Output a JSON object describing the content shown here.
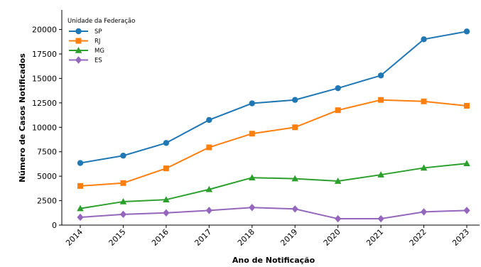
{
  "chart_data": {
    "type": "line",
    "xlabel": "Ano de Notificação",
    "ylabel": "Número de Casos Notificados",
    "x": [
      "2014",
      "2015",
      "2016",
      "2017",
      "2018",
      "2019",
      "2020",
      "2021",
      "2022",
      "2023"
    ],
    "ylim": [
      0,
      22000
    ],
    "yticks": [
      0,
      2500,
      5000,
      7500,
      10000,
      12500,
      15000,
      17500,
      20000
    ],
    "ytick_labels": [
      "0",
      "2500",
      "5000",
      "7500",
      "10000",
      "12500",
      "15000",
      "17500",
      "20000"
    ],
    "grid": false,
    "legend": {
      "title": "Unidade da Federação",
      "position": "top-left"
    },
    "series": [
      {
        "name": "SP",
        "color": "#1f77b4",
        "marker": "circle",
        "values": [
          6350,
          7100,
          8400,
          10750,
          12450,
          12800,
          14000,
          15300,
          19000,
          19800
        ]
      },
      {
        "name": "RJ",
        "color": "#ff7f0e",
        "marker": "square",
        "values": [
          4000,
          4300,
          5800,
          7950,
          9350,
          10000,
          11750,
          12800,
          12650,
          12200
        ]
      },
      {
        "name": "MG",
        "color": "#2ca02c",
        "marker": "triangle",
        "values": [
          1700,
          2400,
          2600,
          3650,
          4850,
          4750,
          4500,
          5150,
          5850,
          6300
        ]
      },
      {
        "name": "ES",
        "color": "#9467bd",
        "marker": "diamond",
        "values": [
          800,
          1100,
          1250,
          1500,
          1800,
          1650,
          650,
          650,
          1350,
          1500
        ]
      }
    ]
  }
}
